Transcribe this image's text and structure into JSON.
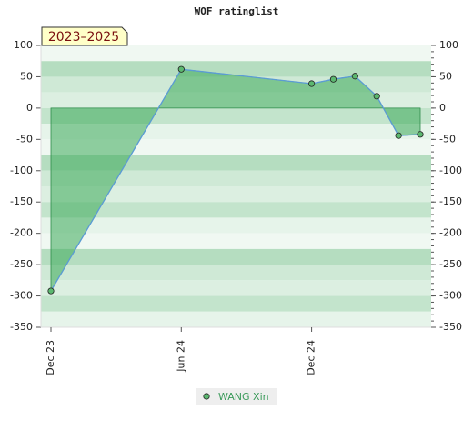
{
  "chart_data": {
    "type": "line",
    "title": "WOF ratinglist",
    "annotation": "2023–2025",
    "x": [
      "2023-12",
      "2024-06",
      "2024-12",
      "2025-01",
      "2025-02",
      "2025-03",
      "2025-04",
      "2025-05"
    ],
    "xticks": [
      {
        "value": "2023-12",
        "label": "Dec 23"
      },
      {
        "value": "2024-06",
        "label": "Jun 24"
      },
      {
        "value": "2024-12",
        "label": "Dec 24"
      }
    ],
    "xlim": [
      "2023-12",
      "2025-05"
    ],
    "series": [
      {
        "name": "WANG Xin",
        "color": "#5b9bd5",
        "fill": "#3caa5a",
        "values": [
          -292,
          62,
          39,
          46,
          51,
          19,
          -44,
          -42
        ]
      }
    ],
    "ylim": [
      -350,
      100
    ],
    "yticks": [
      -350,
      -300,
      -250,
      -200,
      -150,
      -100,
      -50,
      0,
      50,
      100
    ],
    "grid": true
  }
}
